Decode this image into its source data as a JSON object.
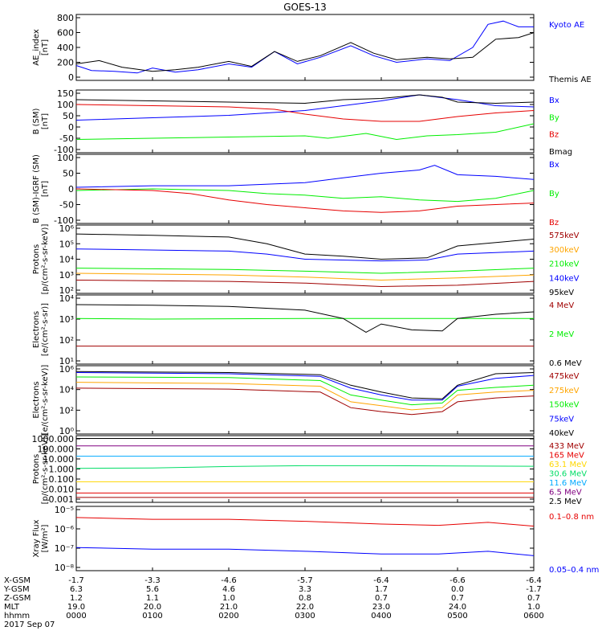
{
  "title": "GOES-13",
  "colors": {
    "black": "#000000",
    "blue": "#0000ff",
    "red": "#e60000",
    "green": "#00ee00",
    "orange": "#ffa500",
    "darkred": "#a00000",
    "yellow": "#ffd700",
    "cyan": "#00aaff",
    "purple": "#800080",
    "mint": "#00dd66"
  },
  "chart_data": [
    {
      "type": "line",
      "ylabel": [
        "AE_index",
        "[nT]"
      ],
      "ylim": [
        0,
        800
      ],
      "yticks": [
        "800",
        "600",
        "400",
        "200",
        "0"
      ],
      "series": [
        {
          "name": "Kyoto AE",
          "color": "blue",
          "x": [
            0,
            0.2,
            0.5,
            0.8,
            1.0,
            1.3,
            1.6,
            2.0,
            2.3,
            2.6,
            2.9,
            3.2,
            3.6,
            3.9,
            4.2,
            4.6,
            4.9,
            5.2,
            5.4,
            5.6,
            5.8,
            6.0
          ],
          "y": [
            180,
            120,
            110,
            90,
            150,
            100,
            130,
            200,
            160,
            350,
            200,
            280,
            420,
            300,
            220,
            260,
            240,
            400,
            680,
            720,
            650,
            650
          ]
        },
        {
          "name": "Themis AE",
          "color": "black",
          "x": [
            0,
            0.3,
            0.6,
            1.0,
            1.3,
            1.6,
            2.0,
            2.3,
            2.6,
            2.9,
            3.2,
            3.6,
            3.9,
            4.2,
            4.6,
            4.9,
            5.2,
            5.5,
            5.8,
            6.0
          ],
          "y": [
            200,
            240,
            160,
            110,
            130,
            160,
            230,
            170,
            350,
            230,
            300,
            460,
            330,
            250,
            280,
            260,
            280,
            500,
            520,
            580
          ]
        }
      ]
    },
    {
      "type": "line",
      "ylabel": [
        "B (SM)",
        "[nT]"
      ],
      "ylim": [
        -110,
        150
      ],
      "yticks": [
        "150",
        "100",
        "50",
        "0",
        "-50",
        "-100"
      ],
      "series": [
        {
          "name": "Bx",
          "color": "blue",
          "x": [
            0,
            1,
            2,
            3,
            4,
            4.5,
            5,
            5.5,
            6
          ],
          "y": [
            25,
            35,
            45,
            65,
            105,
            130,
            110,
            85,
            80
          ]
        },
        {
          "name": "By",
          "color": "green",
          "x": [
            0,
            1,
            2,
            3,
            3.3,
            3.8,
            4.2,
            4.6,
            5,
            5.5,
            6
          ],
          "y": [
            -55,
            -50,
            -45,
            -40,
            -50,
            -30,
            -55,
            -40,
            -35,
            -25,
            10
          ]
        },
        {
          "name": "Bz",
          "color": "red",
          "x": [
            0,
            1,
            2,
            2.6,
            3,
            3.5,
            4,
            4.5,
            5,
            5.5,
            6
          ],
          "y": [
            90,
            85,
            80,
            70,
            50,
            30,
            20,
            20,
            40,
            55,
            65
          ]
        },
        {
          "name": "Bmag",
          "color": "black",
          "x": [
            0,
            1,
            2,
            3,
            3.5,
            4,
            4.5,
            4.8,
            5,
            5.5,
            6
          ],
          "y": [
            110,
            105,
            100,
            95,
            110,
            115,
            130,
            120,
            100,
            95,
            100
          ]
        }
      ]
    },
    {
      "type": "line",
      "ylabel": [
        "B (SM)-IGRF (SM)",
        "[nT]"
      ],
      "ylim": [
        -110,
        110
      ],
      "yticks": [
        "100",
        "50",
        "0",
        "-50",
        "-100"
      ],
      "series": [
        {
          "name": "Bx",
          "color": "blue",
          "x": [
            0,
            1,
            2,
            3,
            3.5,
            4,
            4.5,
            4.7,
            5,
            5.5,
            6
          ],
          "y": [
            5,
            10,
            10,
            20,
            35,
            50,
            60,
            75,
            45,
            40,
            30
          ]
        },
        {
          "name": "By",
          "color": "green",
          "x": [
            0,
            1,
            2,
            2.5,
            3,
            3.5,
            4,
            4.5,
            5,
            5.5,
            6
          ],
          "y": [
            -5,
            0,
            -5,
            -15,
            -20,
            -30,
            -25,
            -35,
            -40,
            -30,
            -5
          ]
        },
        {
          "name": "Bz",
          "color": "red",
          "x": [
            0,
            1,
            1.5,
            2,
            2.5,
            3,
            3.5,
            4,
            4.5,
            5,
            5.5,
            6
          ],
          "y": [
            0,
            -5,
            -15,
            -35,
            -50,
            -60,
            -70,
            -75,
            -70,
            -55,
            -50,
            -45
          ]
        }
      ]
    },
    {
      "type": "line",
      "ylabel": [
        "Protons",
        "[p/(cm²-s-sr-keV)]"
      ],
      "yscale": "log",
      "ylim": [
        100,
        1000000
      ],
      "yticks": [
        "10⁶",
        "10⁵",
        "10⁴",
        "10³",
        "10²"
      ],
      "series": [
        {
          "name": "575keV",
          "color": "darkred",
          "x": [
            0,
            2,
            3,
            4,
            5,
            6
          ],
          "y": [
            600,
            500,
            400,
            250,
            300,
            500
          ]
        },
        {
          "name": "300keV",
          "color": "orange",
          "x": [
            0,
            2,
            3,
            4,
            5,
            6
          ],
          "y": [
            1500,
            1200,
            900,
            600,
            800,
            1200
          ]
        },
        {
          "name": "210keV",
          "color": "green",
          "x": [
            0,
            2,
            3,
            4,
            5,
            6
          ],
          "y": [
            3000,
            2500,
            2000,
            1500,
            2000,
            3000
          ]
        },
        {
          "name": "140keV",
          "color": "blue",
          "x": [
            0,
            2,
            2.5,
            3,
            4,
            4.6,
            5,
            6
          ],
          "y": [
            40000,
            30000,
            20000,
            10000,
            8000,
            9000,
            20000,
            30000
          ]
        },
        {
          "name": "95keV",
          "color": "black",
          "x": [
            0,
            1,
            2,
            2.5,
            3,
            3.5,
            4,
            4.6,
            5,
            6
          ],
          "y": [
            300000,
            250000,
            200000,
            80000,
            20000,
            15000,
            10000,
            12000,
            60000,
            150000
          ]
        }
      ]
    },
    {
      "type": "line",
      "ylabel": [
        "Electrons",
        "[e/(cm²-s-sr)]"
      ],
      "yscale": "log",
      "ylim": [
        1,
        100000
      ],
      "yticks": [
        "10⁴",
        "10³",
        "10²",
        "10¹"
      ],
      "series": [
        {
          "name": "4 MeV",
          "color": "darkred",
          "x": [
            0,
            6
          ],
          "y": [
            20,
            20
          ]
        },
        {
          "name": "2 MeV",
          "color": "green",
          "x": [
            0,
            1,
            2,
            3,
            4,
            5,
            6
          ],
          "y": [
            2000,
            1800,
            1900,
            2000,
            2000,
            2000,
            2000
          ]
        },
        {
          "name": "0.6 MeV",
          "color": "black",
          "x": [
            0,
            1,
            2,
            3,
            3.5,
            3.8,
            4,
            4.4,
            4.8,
            5,
            5.5,
            6
          ],
          "y": [
            20000,
            18000,
            15000,
            8000,
            2000,
            200,
            800,
            300,
            250,
            2000,
            4000,
            6000
          ]
        }
      ]
    },
    {
      "type": "line",
      "ylabel": [
        "Electrons",
        "[e/(cm²-s-sr-keV)]"
      ],
      "yscale": "log",
      "ylim": [
        1,
        10000000
      ],
      "yticks": [
        "10⁶",
        "10⁴",
        "10²",
        "10⁰"
      ],
      "series": [
        {
          "name": "475keV",
          "color": "darkred",
          "x": [
            0,
            2,
            3.2,
            3.6,
            4,
            4.4,
            4.8,
            5,
            5.5,
            6
          ],
          "y": [
            50000,
            40000,
            20000,
            500,
            200,
            100,
            200,
            2000,
            5000,
            8000
          ]
        },
        {
          "name": "275keV",
          "color": "orange",
          "x": [
            0,
            2,
            3.2,
            3.6,
            4,
            4.4,
            4.8,
            5,
            5.5,
            6
          ],
          "y": [
            200000,
            150000,
            80000,
            2000,
            800,
            300,
            500,
            10000,
            20000,
            30000
          ]
        },
        {
          "name": "150keV",
          "color": "green",
          "x": [
            0,
            2,
            3.2,
            3.6,
            4,
            4.4,
            4.8,
            5,
            5.5,
            6
          ],
          "y": [
            700000,
            600000,
            300000,
            10000,
            3000,
            1000,
            1500,
            30000,
            60000,
            100000
          ]
        },
        {
          "name": "75keV",
          "color": "blue",
          "x": [
            0,
            2,
            3.2,
            3.6,
            4,
            4.4,
            4.8,
            5,
            5.5,
            6
          ],
          "y": [
            2000000,
            1500000,
            800000,
            50000,
            10000,
            3000,
            3000,
            80000,
            500000,
            1000000
          ]
        },
        {
          "name": "40keV",
          "color": "black",
          "x": [
            0,
            2,
            3.2,
            3.6,
            4,
            4.4,
            4.8,
            5,
            5.5,
            6
          ],
          "y": [
            2500000,
            2000000,
            1200000,
            100000,
            20000,
            5000,
            4000,
            100000,
            1500000,
            2000000
          ]
        }
      ]
    },
    {
      "type": "line",
      "ylabel": [
        "Protons",
        "[p/(cm²-s-sr-keV)]"
      ],
      "yscale": "log",
      "ylim": [
        0.0005,
        1500
      ],
      "yticks": [
        "1000.000",
        "100.000",
        "10.000",
        "1.000",
        "0.100",
        "0.010",
        "0.001"
      ],
      "series": [
        {
          "name": "433 MeV",
          "color": "darkred",
          "x": [
            0,
            6
          ],
          "y": [
            0.0015,
            0.0015
          ]
        },
        {
          "name": "165 MeV",
          "color": "red",
          "x": [
            0,
            6
          ],
          "y": [
            0.004,
            0.004
          ]
        },
        {
          "name": "63.1 MeV",
          "color": "yellow",
          "x": [
            0,
            6
          ],
          "y": [
            0.05,
            0.05
          ]
        },
        {
          "name": "30.6 MeV",
          "color": "mint",
          "x": [
            0,
            1,
            2,
            3,
            4,
            5,
            6
          ],
          "y": [
            1,
            1.1,
            1.5,
            1.8,
            1.8,
            1.7,
            1.6
          ]
        },
        {
          "name": "11.6 MeV",
          "color": "cyan",
          "x": [
            0,
            6
          ],
          "y": [
            15,
            15
          ]
        },
        {
          "name": "6.5 MeV",
          "color": "purple",
          "x": [
            0,
            6
          ],
          "y": [
            150,
            150
          ]
        },
        {
          "name": "2.5 MeV",
          "color": "black",
          "x": [
            0,
            6
          ],
          "y": [
            800,
            800
          ]
        }
      ]
    },
    {
      "type": "line",
      "ylabel": [
        "Xray Flux",
        "[W/m²]"
      ],
      "yscale": "log",
      "ylim": [
        1e-08,
        1e-05
      ],
      "yticks": [
        "10⁻⁵",
        "10⁻⁶",
        "10⁻⁷",
        "10⁻⁸"
      ],
      "series": [
        {
          "name": "0.1–0.8 nm",
          "color": "red",
          "x": [
            0,
            1,
            2,
            3,
            4,
            4.75,
            5.4,
            6
          ],
          "y": [
            3e-06,
            2.5e-06,
            2.5e-06,
            2e-06,
            1.5e-06,
            1.3e-06,
            1.8e-06,
            1.2e-06
          ]
        },
        {
          "name": "0.05–0.4 nm",
          "color": "blue",
          "x": [
            0,
            1,
            2,
            3,
            4,
            4.75,
            5.4,
            6
          ],
          "y": [
            1.2e-07,
            1e-07,
            1e-07,
            8e-08,
            6e-08,
            6e-08,
            8e-08,
            5e-08
          ]
        }
      ]
    }
  ],
  "xaxis": {
    "ticks": [
      "0000",
      "0100",
      "0200",
      "0300",
      "0400",
      "0500",
      "0600"
    ],
    "rows": [
      {
        "label": "X-GSM",
        "values": [
          "-1.7",
          "-3.3",
          "-4.6",
          "-5.7",
          "-6.4",
          "-6.6",
          "-6.4"
        ]
      },
      {
        "label": "Y-GSM",
        "values": [
          "6.3",
          "5.6",
          "4.6",
          "3.3",
          "1.7",
          "0.0",
          "-1.7"
        ]
      },
      {
        "label": "Z-GSM",
        "values": [
          "1.2",
          "1.1",
          "1.0",
          "0.8",
          "0.7",
          "0.7",
          "0.7"
        ]
      },
      {
        "label": "MLT",
        "values": [
          "19.0",
          "20.0",
          "21.0",
          "22.0",
          "23.0",
          "24.0",
          "1.0"
        ]
      },
      {
        "label": "hhmm",
        "values": [
          "0000",
          "0100",
          "0200",
          "0300",
          "0400",
          "0500",
          "0600"
        ]
      }
    ],
    "date": "2017 Sep 07"
  }
}
